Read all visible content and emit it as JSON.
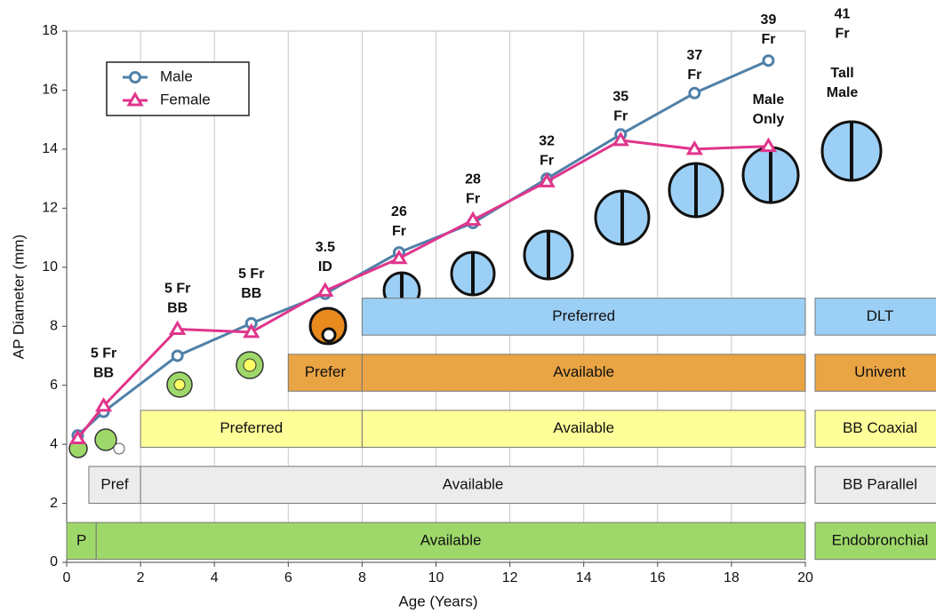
{
  "chart_data": {
    "type": "line",
    "x_label": "Age (Years)",
    "y_label": "AP Diameter (mm)",
    "xlim": [
      0,
      20
    ],
    "ylim": [
      0,
      18
    ],
    "xticks": [
      0,
      2,
      4,
      6,
      8,
      10,
      12,
      14,
      16,
      18,
      20
    ],
    "yticks": [
      0,
      2,
      4,
      6,
      8,
      10,
      12,
      14,
      16,
      18
    ],
    "grid": true,
    "legend": "upper left",
    "x": [
      0.3,
      1,
      3,
      5,
      7,
      9,
      11,
      13,
      15,
      17,
      19
    ],
    "series": [
      {
        "name": "Male",
        "color": "#4f80a8",
        "marker": "circle",
        "values": [
          4.3,
          5.1,
          7.0,
          8.1,
          9.1,
          10.5,
          11.5,
          13.0,
          14.5,
          15.9,
          17.0
        ]
      },
      {
        "name": "Female",
        "color": "#e0358c",
        "marker": "triangle",
        "values": [
          4.2,
          5.3,
          7.9,
          7.8,
          9.2,
          10.3,
          11.6,
          12.9,
          14.3,
          14.0,
          14.1
        ]
      }
    ],
    "annotations": [
      {
        "x": 1,
        "y": 6.4,
        "lines": [
          "5 Fr",
          "BB"
        ]
      },
      {
        "x": 3,
        "y": 8.6,
        "lines": [
          "5 Fr",
          "BB"
        ]
      },
      {
        "x": 5,
        "y": 9.1,
        "lines": [
          "5 Fr",
          "BB"
        ]
      },
      {
        "x": 7,
        "y": 10.0,
        "lines": [
          "3.5",
          "ID"
        ]
      },
      {
        "x": 9,
        "y": 11.2,
        "lines": [
          "26",
          "Fr"
        ]
      },
      {
        "x": 11,
        "y": 12.3,
        "lines": [
          "28",
          "Fr"
        ]
      },
      {
        "x": 13,
        "y": 13.6,
        "lines": [
          "32",
          "Fr"
        ]
      },
      {
        "x": 15,
        "y": 15.1,
        "lines": [
          "35",
          "Fr"
        ]
      },
      {
        "x": 17,
        "y": 16.5,
        "lines": [
          "37",
          "Fr"
        ]
      },
      {
        "x": 19,
        "y": 17.7,
        "lines": [
          "39",
          "Fr"
        ]
      },
      {
        "x": 19,
        "y": 15.0,
        "lines": [
          "Male",
          "Only"
        ]
      },
      {
        "x": 21,
        "y": 17.9,
        "lines": [
          "41",
          "Fr"
        ]
      },
      {
        "x": 21,
        "y": 15.9,
        "lines": [
          "Tall",
          "Male"
        ]
      }
    ],
    "bands": [
      {
        "name": "Endobronchial",
        "color": "#9ed86a",
        "segments": [
          {
            "label": "P",
            "start": 0,
            "end": 0.8
          },
          {
            "label": "Available",
            "start": 0.8,
            "end": 20
          }
        ]
      },
      {
        "name": "BB Parallel",
        "color": "#ececec",
        "segments": [
          {
            "label": "Pref",
            "start": 0.6,
            "end": 2
          },
          {
            "label": "Available",
            "start": 2,
            "end": 20
          }
        ]
      },
      {
        "name": "BB Coaxial",
        "color": "#ffff99",
        "segments": [
          {
            "label": "Preferred",
            "start": 2,
            "end": 8
          },
          {
            "label": "Available",
            "start": 8,
            "end": 20
          }
        ]
      },
      {
        "name": "Univent",
        "color": "#e9a443",
        "segments": [
          {
            "label": "Prefer",
            "start": 6,
            "end": 8
          },
          {
            "label": "Available",
            "start": 8,
            "end": 20
          }
        ]
      },
      {
        "name": "DLT",
        "color": "#9ccff5",
        "segments": [
          {
            "label": "Preferred",
            "start": 8,
            "end": 20
          }
        ]
      }
    ]
  }
}
